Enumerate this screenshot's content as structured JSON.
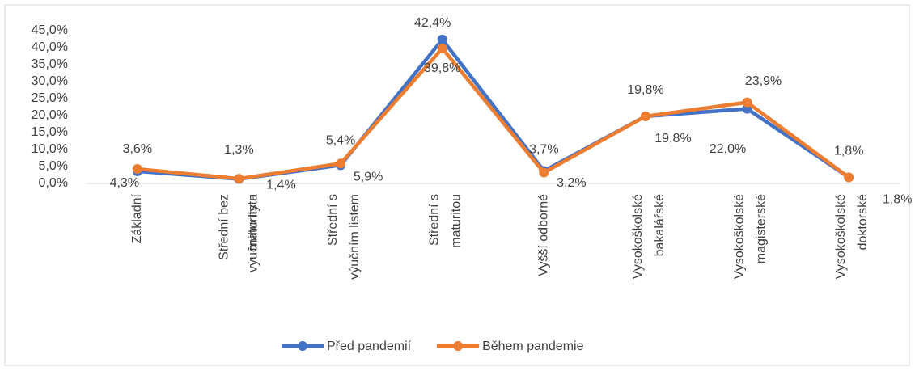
{
  "chart_data": {
    "type": "line",
    "categories": [
      "Základní",
      "Střední bez\nmaturity a\nvýučního listu",
      "Střední s\nvýučním listem",
      "Střední s\nmaturitou",
      "Vyšší odborné",
      "Vysokoškolské\nbakalářské",
      "Vysokoškolské\nmagisterské",
      "Vysokoškolské\ndoktorské"
    ],
    "series": [
      {
        "name": "Před pandemií",
        "color": "#4472c4",
        "values": [
          3.6,
          1.3,
          5.4,
          42.4,
          3.7,
          19.8,
          22.0,
          1.8
        ],
        "value_labels": [
          "3,6%",
          "1,3%",
          "5,4%",
          "42,4%",
          "3,7%",
          "19,8%",
          "22,0%",
          "1,8%"
        ]
      },
      {
        "name": "Během pandemie",
        "color": "#ed7d31",
        "values": [
          4.3,
          1.4,
          5.9,
          39.8,
          3.2,
          19.8,
          23.9,
          1.8
        ],
        "value_labels": [
          "4,3%",
          "1,4%",
          "5,9%",
          "39,8%",
          "3,2%",
          "19,8%",
          "23,9%",
          "1,8%"
        ]
      }
    ],
    "ylim": [
      0,
      45
    ],
    "yticks": [
      {
        "value": 0,
        "label": "0,0%"
      },
      {
        "value": 5,
        "label": "5,0%"
      },
      {
        "value": 10,
        "label": "10,0%"
      },
      {
        "value": 15,
        "label": "15,0%"
      },
      {
        "value": 20,
        "label": "20,0%"
      },
      {
        "value": 25,
        "label": "25,0%"
      },
      {
        "value": 30,
        "label": "30,0%"
      },
      {
        "value": 35,
        "label": "35,0%"
      },
      {
        "value": 40,
        "label": "40,0%"
      },
      {
        "value": 45,
        "label": "45,0%"
      }
    ],
    "legend": "bottom"
  }
}
